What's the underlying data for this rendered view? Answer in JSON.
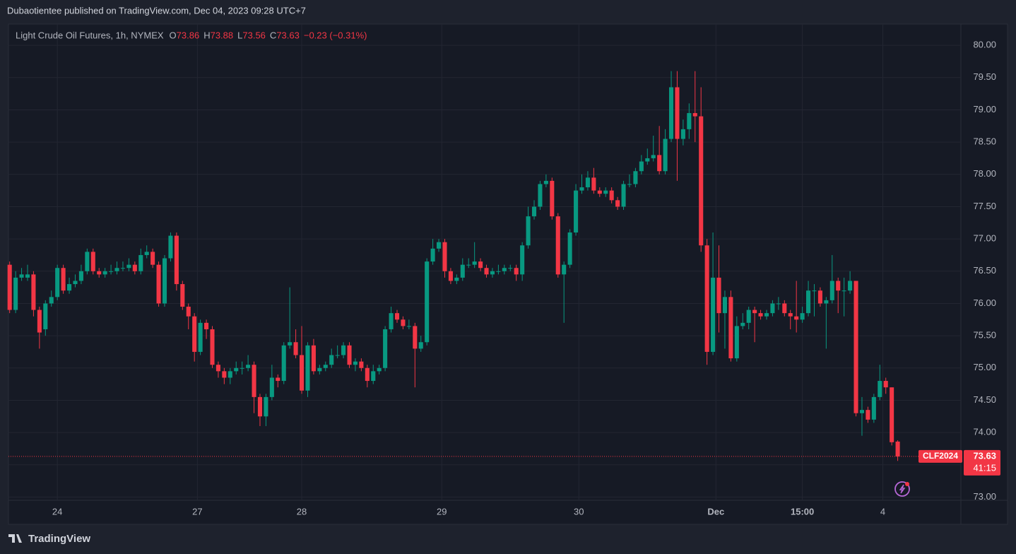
{
  "header": {
    "text": "Dubaotientee published on TradingView.com, Dec 04, 2023 09:28 UTC+7"
  },
  "footer": {
    "brand": "TradingView"
  },
  "chart_data": {
    "type": "candlestick",
    "title": "Light Crude Oil Futures, 1h, NYMEX",
    "ohlc_legend": [
      {
        "label": "O",
        "value": 73.86
      },
      {
        "label": "H",
        "value": 73.88
      },
      {
        "label": "L",
        "value": 73.56
      },
      {
        "label": "C",
        "value": 73.63
      }
    ],
    "change": "−0.23 (−0.31%)",
    "symbol": "CLF2024",
    "last_price": 73.63,
    "countdown": "41:15",
    "up_color": "#089981",
    "down_color": "#f23645",
    "ylim": [
      72.95,
      80.33
    ],
    "yticks": [
      {
        "value": 73,
        "label": "73.00"
      },
      {
        "value": 73.5,
        "label": "73.50"
      },
      {
        "value": 74,
        "label": "74.00"
      },
      {
        "value": 74.5,
        "label": "74.50"
      },
      {
        "value": 75,
        "label": "75.00"
      },
      {
        "value": 75.5,
        "label": "75.50"
      },
      {
        "value": 76,
        "label": "76.00"
      },
      {
        "value": 76.5,
        "label": "76.50"
      },
      {
        "value": 77,
        "label": "77.00"
      },
      {
        "value": 77.5,
        "label": "77.50"
      },
      {
        "value": 78,
        "label": "78.00"
      },
      {
        "value": 78.5,
        "label": "78.50"
      },
      {
        "value": 79,
        "label": "79.00"
      },
      {
        "value": 79.5,
        "label": "79.50"
      },
      {
        "value": 80,
        "label": "80.00"
      }
    ],
    "xlim": [
      -0.2,
      159.6
    ],
    "xticks": [
      {
        "value": 8,
        "label": "24"
      },
      {
        "value": 31.5,
        "label": "27"
      },
      {
        "value": 49,
        "label": "28"
      },
      {
        "value": 72.5,
        "label": "29"
      },
      {
        "value": 95.5,
        "label": "30"
      },
      {
        "value": 118.5,
        "label": "Dec"
      },
      {
        "value": 133,
        "label": "15:00"
      },
      {
        "value": 146.5,
        "label": "4"
      }
    ],
    "grid": true,
    "open": [
      76.6,
      75.9,
      76.4,
      76.4,
      76.45,
      75.9,
      75.6,
      76.0,
      76.1,
      76.55,
      76.2,
      76.3,
      76.35,
      76.5,
      76.8,
      76.5,
      76.45,
      76.5,
      76.5,
      76.55,
      76.55,
      76.6,
      76.5,
      76.75,
      76.8,
      76.6,
      76.0,
      76.7,
      77.05,
      76.3,
      75.95,
      75.8,
      75.25,
      75.7,
      75.6,
      75.05,
      74.95,
      74.85,
      74.95,
      75.0,
      75.0,
      75.05,
      74.55,
      74.25,
      74.55,
      74.85,
      74.8,
      75.35,
      75.4,
      75.2,
      74.65,
      75.35,
      74.95,
      75.0,
      75.05,
      75.2,
      75.2,
      75.35,
      75.05,
      75.1,
      75.0,
      74.8,
      74.95,
      75.0,
      75.6,
      75.85,
      75.75,
      75.65,
      75.65,
      75.3,
      75.4,
      76.65,
      76.85,
      76.95,
      76.5,
      76.35,
      76.4,
      76.6,
      76.6,
      76.65,
      76.55,
      76.45,
      76.5,
      76.5,
      76.55,
      76.55,
      76.45,
      76.9,
      77.35,
      77.5,
      77.85,
      77.9,
      77.35,
      76.45,
      76.6,
      77.1,
      77.75,
      77.8,
      77.95,
      77.75,
      77.7,
      77.75,
      77.6,
      77.5,
      77.85,
      77.85,
      78.05,
      78.2,
      78.25,
      78.3,
      78.05,
      78.55,
      79.35,
      78.55,
      78.7,
      78.95,
      78.9,
      76.9,
      75.25,
      76.4,
      75.85,
      76.1,
      75.15,
      75.65,
      75.7,
      75.9,
      75.85,
      75.8,
      75.85,
      76.0,
      76.0,
      75.85,
      75.8,
      75.75,
      75.85,
      76.2,
      76.2,
      76.0,
      76.05,
      76.35,
      76.2,
      76.2,
      76.35,
      74.3,
      74.35,
      74.2,
      74.55,
      74.8,
      74.7,
      73.86
    ],
    "high": [
      76.65,
      76.5,
      76.55,
      76.6,
      76.5,
      75.95,
      76.05,
      76.2,
      76.6,
      76.6,
      76.4,
      76.45,
      76.6,
      76.85,
      76.85,
      76.55,
      76.55,
      76.6,
      76.65,
      76.65,
      76.7,
      76.65,
      76.85,
      76.9,
      76.85,
      76.65,
      76.75,
      77.1,
      77.1,
      76.35,
      76.0,
      75.85,
      75.75,
      75.75,
      75.65,
      75.1,
      75.0,
      75.0,
      75.1,
      75.1,
      75.2,
      75.1,
      74.6,
      74.6,
      75.05,
      74.9,
      75.4,
      76.25,
      75.6,
      75.65,
      75.4,
      75.45,
      75.05,
      75.1,
      75.3,
      75.35,
      75.4,
      75.4,
      75.15,
      75.15,
      75.05,
      75.05,
      75.05,
      75.65,
      75.95,
      75.9,
      75.8,
      75.75,
      75.7,
      75.5,
      76.7,
      77.0,
      77.0,
      77.0,
      76.55,
      76.45,
      76.7,
      76.7,
      76.95,
      76.7,
      76.6,
      76.55,
      76.6,
      76.6,
      76.6,
      76.6,
      76.95,
      77.5,
      77.6,
      77.9,
      78.0,
      77.95,
      77.4,
      76.65,
      77.15,
      77.85,
      78.0,
      78.05,
      78.1,
      77.8,
      77.8,
      77.8,
      77.65,
      77.9,
      78.0,
      78.1,
      78.3,
      78.4,
      78.6,
      78.75,
      78.7,
      79.6,
      79.6,
      78.85,
      79.1,
      79.6,
      79.35,
      77.0,
      77.1,
      76.9,
      76.2,
      76.2,
      75.8,
      75.85,
      75.95,
      75.95,
      75.9,
      75.9,
      76.05,
      76.1,
      76.05,
      75.9,
      76.35,
      75.95,
      76.35,
      76.3,
      76.25,
      76.1,
      76.75,
      76.4,
      76.4,
      76.5,
      76.35,
      74.55,
      74.4,
      74.6,
      75.05,
      74.85,
      74.7,
      73.88
    ],
    "low": [
      75.85,
      75.85,
      76.35,
      76.35,
      75.8,
      75.3,
      75.5,
      75.95,
      76.05,
      76.15,
      76.15,
      76.25,
      76.3,
      76.45,
      76.45,
      76.4,
      76.4,
      76.45,
      76.45,
      76.5,
      76.5,
      76.45,
      76.45,
      76.7,
      76.55,
      75.95,
      75.95,
      76.65,
      76.2,
      75.9,
      75.6,
      75.1,
      75.2,
      75.45,
      75.0,
      74.85,
      74.75,
      74.75,
      74.9,
      74.9,
      74.95,
      74.3,
      74.1,
      74.1,
      74.5,
      74.7,
      74.75,
      75.3,
      75.15,
      74.6,
      74.55,
      74.9,
      74.9,
      74.95,
      75.0,
      75.15,
      75.15,
      75.0,
      74.95,
      74.95,
      74.7,
      74.75,
      74.9,
      74.95,
      75.55,
      75.7,
      75.6,
      75.6,
      74.7,
      75.25,
      75.35,
      76.6,
      76.8,
      76.4,
      76.3,
      76.3,
      76.35,
      76.55,
      76.55,
      76.5,
      76.4,
      76.4,
      76.45,
      76.45,
      76.5,
      76.35,
      76.35,
      76.85,
      77.3,
      77.45,
      77.8,
      77.3,
      76.4,
      75.7,
      76.55,
      77.05,
      77.7,
      77.75,
      77.7,
      77.65,
      77.65,
      77.55,
      77.45,
      77.45,
      77.8,
      77.8,
      78.0,
      78.15,
      78.2,
      78.0,
      78.0,
      78.5,
      77.9,
      78.45,
      78.55,
      78.5,
      76.8,
      75.05,
      75.2,
      75.55,
      75.3,
      75.1,
      75.1,
      75.6,
      75.6,
      75.4,
      75.75,
      75.75,
      75.8,
      75.9,
      75.8,
      75.6,
      75.55,
      75.7,
      75.8,
      75.8,
      75.95,
      75.3,
      76.0,
      75.85,
      75.8,
      76.15,
      74.25,
      73.95,
      74.15,
      74.15,
      74.5,
      74.6,
      73.8,
      73.56
    ],
    "close": [
      75.9,
      76.4,
      76.45,
      76.45,
      75.9,
      75.55,
      76.0,
      76.1,
      76.55,
      76.2,
      76.3,
      76.35,
      76.5,
      76.8,
      76.5,
      76.45,
      76.5,
      76.5,
      76.55,
      76.55,
      76.6,
      76.5,
      76.75,
      76.8,
      76.6,
      76.0,
      76.7,
      77.05,
      76.3,
      75.95,
      75.8,
      75.25,
      75.7,
      75.6,
      75.05,
      74.95,
      74.85,
      74.95,
      75.0,
      75.0,
      75.05,
      74.55,
      74.25,
      74.55,
      74.85,
      74.8,
      75.35,
      75.4,
      75.2,
      74.65,
      75.35,
      74.95,
      75.0,
      75.05,
      75.2,
      75.2,
      75.35,
      75.05,
      75.1,
      75.0,
      74.8,
      74.95,
      75.0,
      75.6,
      75.85,
      75.75,
      75.65,
      75.65,
      75.3,
      75.4,
      76.65,
      76.85,
      76.95,
      76.5,
      76.35,
      76.4,
      76.6,
      76.6,
      76.65,
      76.55,
      76.45,
      76.5,
      76.5,
      76.55,
      76.55,
      76.45,
      76.9,
      77.35,
      77.5,
      77.85,
      77.9,
      77.35,
      76.45,
      76.6,
      77.1,
      77.75,
      77.8,
      77.95,
      77.75,
      77.7,
      77.75,
      77.6,
      77.5,
      77.85,
      77.85,
      78.05,
      78.2,
      78.25,
      78.3,
      78.05,
      78.55,
      79.35,
      78.55,
      78.7,
      78.95,
      78.9,
      76.9,
      75.25,
      76.4,
      75.85,
      76.1,
      75.15,
      75.65,
      75.7,
      75.9,
      75.85,
      75.8,
      75.85,
      76.0,
      76.0,
      75.85,
      75.8,
      75.75,
      75.85,
      76.2,
      76.2,
      76.0,
      76.05,
      76.35,
      76.2,
      76.2,
      76.35,
      74.3,
      74.35,
      74.2,
      74.55,
      74.8,
      74.7,
      73.85,
      73.63
    ]
  }
}
